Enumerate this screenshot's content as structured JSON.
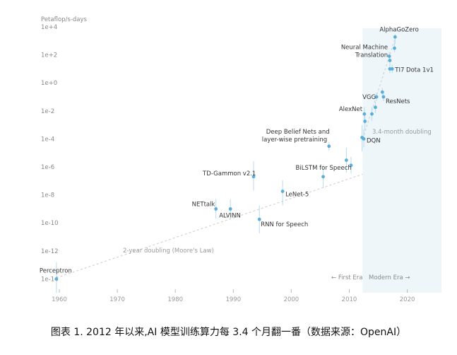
{
  "caption": "图表 1. 2012 年以来,AI 模型训练算力每 3.4 个月翻一番（数据来源：OpenAI）",
  "chart_data": {
    "type": "scatter",
    "ylabel": "Petaflop/s-days",
    "y_scale": "log",
    "ylim": [
      1e-15,
      10000.0
    ],
    "xlim": [
      1956.5,
      2025.5
    ],
    "y_ticks": [
      {
        "value": 10000,
        "label": "1e+4"
      },
      {
        "value": 100,
        "label": "1e+2"
      },
      {
        "value": 1,
        "label": "1e+0"
      },
      {
        "value": 0.01,
        "label": "1e-2"
      },
      {
        "value": 0.0001,
        "label": "1e-4"
      },
      {
        "value": 1e-06,
        "label": "1e-6"
      },
      {
        "value": 1e-08,
        "label": "1e-8"
      },
      {
        "value": 1e-10,
        "label": "1e-10"
      },
      {
        "value": 1e-12,
        "label": "1e-12"
      },
      {
        "value": 1e-14,
        "label": "1e-14"
      }
    ],
    "x_ticks": [
      1960,
      1970,
      1980,
      1990,
      2000,
      2010,
      2020
    ],
    "grid": false,
    "colors": {
      "point": "#5aaed8",
      "whisker": "#b9dbee",
      "trend": "#d3d3d3",
      "modern_era_bg": "#eef6fa"
    },
    "modern_era_start": 2012.3,
    "eras": {
      "first": "← First Era",
      "modern": "Modern Era →"
    },
    "trend_lines": [
      {
        "label": "2-year doubling (Moore's Law)",
        "x": [
          1959.5,
          2012.3
        ],
        "y": [
          1.2e-14,
          3e-07
        ]
      },
      {
        "label": "3.4-month doubling",
        "x": [
          2012.3,
          2018
        ],
        "y": [
          0.0001,
          2000
        ]
      }
    ],
    "points": [
      {
        "label": "Perceptron",
        "x": 1959.5,
        "y": 1e-14
      },
      {
        "label": "NETtalk",
        "x": 1987,
        "y": 1e-09
      },
      {
        "label": "ALVINN",
        "x": 1989.5,
        "y": 1e-09
      },
      {
        "label": "RNN for Speech",
        "x": 1994.5,
        "y": 1.8e-10
      },
      {
        "label": "TD-Gammon v2.1",
        "x": 1993.5,
        "y": 2e-07
      },
      {
        "label": "LeNet-5",
        "x": 1998.5,
        "y": 1.8e-08
      },
      {
        "label": "BiLSTM for Speech",
        "x": 2005.5,
        "y": 2e-07
      },
      {
        "label": "Deep Belief Nets and layer-wise pretraining",
        "x": 2006.5,
        "y": 3e-05
      },
      {
        "label": "",
        "x": 2009.5,
        "y": 3e-06
      },
      {
        "label": "",
        "x": 2010.3,
        "y": 1.3e-06
      },
      {
        "label": "DQN",
        "x": 2012.5,
        "y": 0.0001
      },
      {
        "label": "",
        "x": 2012.2,
        "y": 0.000125
      },
      {
        "label": "AlexNet",
        "x": 2012.6,
        "y": 0.006
      },
      {
        "label": "",
        "x": 2012.7,
        "y": 0.0018
      },
      {
        "label": "",
        "x": 2013.9,
        "y": 0.006
      },
      {
        "label": "",
        "x": 2014.5,
        "y": 0.018
      },
      {
        "label": "VGG",
        "x": 2014.7,
        "y": 0.1
      },
      {
        "label": "ResNets",
        "x": 2015.9,
        "y": 0.1
      },
      {
        "label": "",
        "x": 2015.7,
        "y": 0.22
      },
      {
        "label": "TI7 Dota 1v1",
        "x": 2017.4,
        "y": 10
      },
      {
        "label": "Neural Machine Translation",
        "x": 2016.9,
        "y": 80
      },
      {
        "label": "",
        "x": 2017,
        "y": 40
      },
      {
        "label": "",
        "x": 2017,
        "y": 10
      },
      {
        "label": "",
        "x": 2017.8,
        "y": 300
      },
      {
        "label": "AlphaGoZero",
        "x": 2017.9,
        "y": 1900
      }
    ]
  }
}
